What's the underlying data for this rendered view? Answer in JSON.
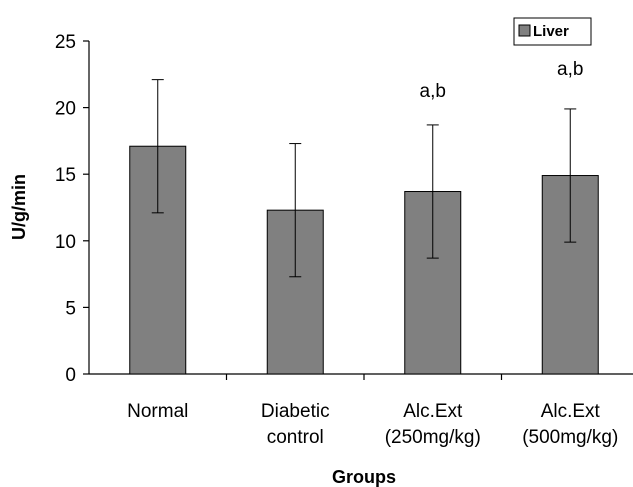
{
  "chart_data": {
    "type": "bar",
    "categories": [
      [
        "Normal"
      ],
      [
        "Diabetic",
        "control"
      ],
      [
        "Alc.Ext",
        "(250mg/kg)"
      ],
      [
        "Alc.Ext",
        "(500mg/kg)"
      ]
    ],
    "series": [
      {
        "name": "Liver",
        "values": [
          17.1,
          12.3,
          13.7,
          14.9
        ],
        "error": [
          5.0,
          5.0,
          5.0,
          5.0
        ],
        "color": "#808080"
      }
    ],
    "annotations": [
      "",
      "",
      "a,b",
      "a,b"
    ],
    "xlabel": "Groups",
    "ylabel": "U/g/min",
    "ylim": [
      0,
      25
    ],
    "yticks": [
      0,
      5,
      10,
      15,
      20,
      25
    ],
    "grid": false,
    "legend_position": "top-right"
  }
}
